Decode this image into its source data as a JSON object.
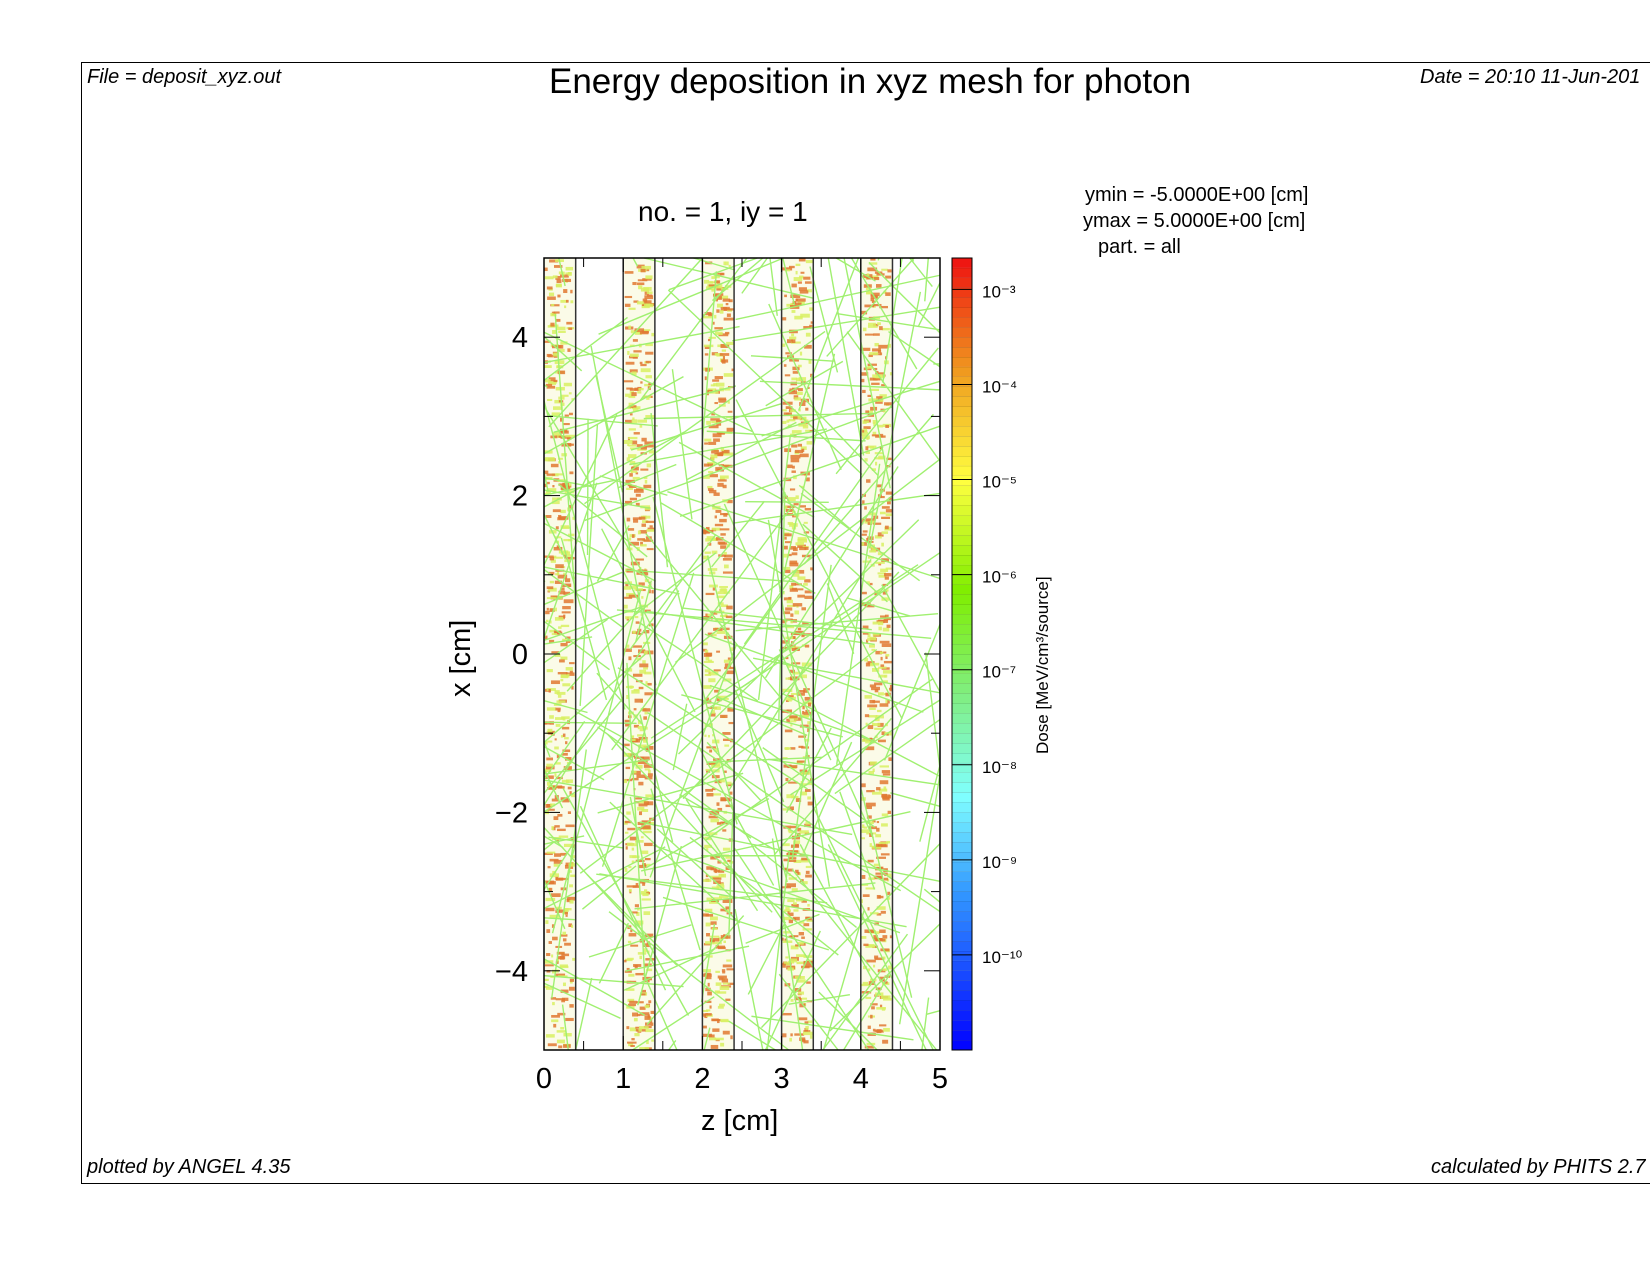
{
  "header": {
    "file": "File = deposit_xyz.out",
    "title": "Energy deposition in xyz mesh for photon",
    "date": "Date = 20:10 11-Jun-201"
  },
  "footer": {
    "plotted_by": "plotted by ANGEL 4.35",
    "calculated_by": "calculated by PHITS 2.7"
  },
  "info": {
    "ymin": "ymin  =  -5.0000E+00 [cm]",
    "ymax": "ymax  =   5.0000E+00 [cm]",
    "part": "part. = all"
  },
  "chart_data": {
    "type": "heatmap",
    "title": "no. =  1,  iy =  1",
    "xlabel": "z [cm]",
    "ylabel": "x [cm]",
    "xlim": [
      0,
      5
    ],
    "ylim": [
      -5,
      5
    ],
    "xticks": [
      "0",
      "1",
      "2",
      "3",
      "4",
      "5"
    ],
    "yticks": [
      "4",
      "2",
      "0",
      "−2",
      "−4"
    ],
    "ytick_values": [
      4,
      2,
      0,
      -2,
      -4
    ],
    "slabs_z": [
      [
        0,
        0.4
      ],
      [
        1,
        1.4
      ],
      [
        2,
        2.4
      ],
      [
        3,
        3.4
      ],
      [
        4,
        4.4
      ]
    ],
    "region_boundaries_z": [
      0.4,
      1.0,
      1.4,
      2.0,
      2.4,
      3.0,
      3.4,
      4.0,
      4.4
    ],
    "colorbar": {
      "label": "Dose [MeV/cm³/source]",
      "scale": "log",
      "range_exp": [
        -11,
        -2.67
      ],
      "tick_exps": [
        -3,
        -4,
        -5,
        -6,
        -7,
        -8,
        -9,
        -10
      ],
      "tick_labels": [
        "10⁻³",
        "10⁻⁴",
        "10⁻⁵",
        "10⁻⁶",
        "10⁻⁷",
        "10⁻⁸",
        "10⁻⁹",
        "10⁻¹⁰"
      ]
    },
    "colors": {
      "track": "#a0f070",
      "slab_hot": "#e07830",
      "slab_warm": "#d8f060"
    }
  }
}
